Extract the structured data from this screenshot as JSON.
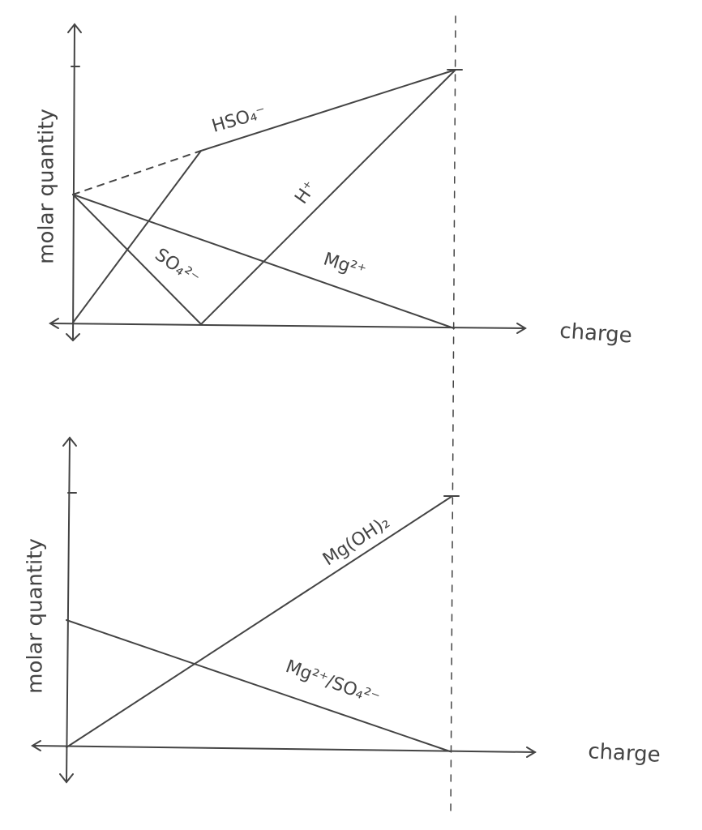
{
  "top_plot": {
    "y_axis_label": "molar quantity",
    "x_axis_label": "charge",
    "labels": {
      "hso4": "HSO₄⁻",
      "h": "H⁺",
      "so4": "SO₄²⁻",
      "mg": "Mg²⁺"
    }
  },
  "bottom_plot": {
    "y_axis_label": "molar quantity",
    "x_axis_label": "charge",
    "labels": {
      "mgoh2": "Mg(OH)₂",
      "mg_so4": "Mg²⁺/SO₄²⁻"
    }
  }
}
